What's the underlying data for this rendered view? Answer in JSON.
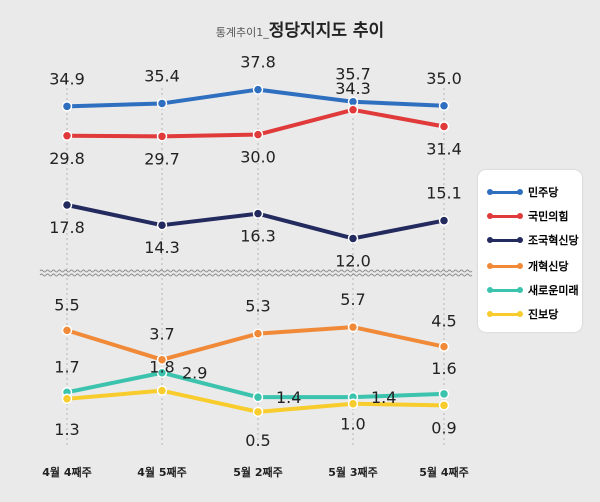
{
  "chart_data": {
    "type": "line",
    "title_prefix": "통계추이1_",
    "title": "정당지지도 추이",
    "categories": [
      "4월 4째주",
      "4월 5째주",
      "5월 2째주",
      "5월 3째주",
      "5월 4째주"
    ],
    "series": [
      {
        "name": "민주당",
        "color": "#2f6fbf",
        "values": [
          34.9,
          35.4,
          37.8,
          35.7,
          35.0
        ],
        "labels": [
          "34.9",
          "35.4",
          "37.8",
          "35.7",
          "35.0"
        ]
      },
      {
        "name": "국민의힘",
        "color": "#e03a3a",
        "values": [
          29.8,
          29.7,
          30.0,
          34.3,
          31.4
        ],
        "labels": [
          "29.8",
          "29.7",
          "30.0",
          "34.3",
          "31.4"
        ]
      },
      {
        "name": "조국혁신당",
        "color": "#232a5e",
        "values": [
          17.8,
          14.3,
          16.3,
          12.0,
          15.1
        ],
        "labels": [
          "17.8",
          "14.3",
          "16.3",
          "12.0",
          "15.1"
        ]
      },
      {
        "name": "개혁신당",
        "color": "#f08a38",
        "values": [
          5.5,
          3.7,
          5.3,
          5.7,
          4.5
        ],
        "labels": [
          "5.5",
          "3.7",
          "5.3",
          "5.7",
          "4.5"
        ]
      },
      {
        "name": "새로운미래",
        "color": "#3cc3ae",
        "values": [
          1.7,
          2.9,
          1.4,
          1.4,
          1.6
        ],
        "labels": [
          "1.7",
          "2.9",
          "1.4",
          "1.4",
          "1.6"
        ]
      },
      {
        "name": "진보당",
        "color": "#f7cc2c",
        "values": [
          1.3,
          1.8,
          0.5,
          1.0,
          0.9
        ],
        "labels": [
          "1.3",
          "1.8",
          "0.5",
          "1.0",
          "0.9"
        ]
      }
    ],
    "axis_break": true,
    "legend_position": "right"
  }
}
